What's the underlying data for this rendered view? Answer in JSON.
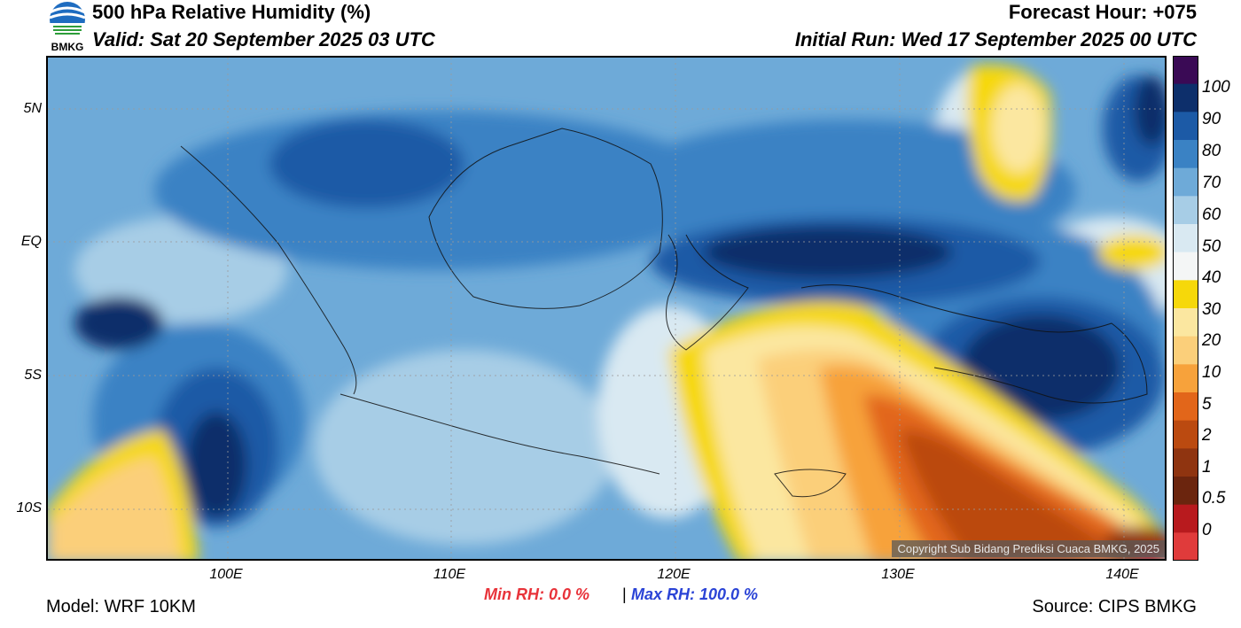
{
  "header": {
    "logo_text": "BMKG",
    "title": "500 hPa Relative Humidity (%)",
    "valid": "Valid: Sat 20 September 2025 03 UTC",
    "forecast_hour": "Forecast Hour: +075",
    "initial_run": "Initial Run: Wed 17 September 2025 00 UTC"
  },
  "map": {
    "lat_labels": [
      "5N",
      "EQ",
      "5S",
      "10S"
    ],
    "lon_labels": [
      "100E",
      "110E",
      "120E",
      "130E",
      "140E"
    ],
    "copyright": "Copyright Sub Bidang Prediksi Cuaca BMKG, 2025"
  },
  "colorbar": {
    "labels": [
      "100",
      "90",
      "80",
      "70",
      "60",
      "50",
      "40",
      "30",
      "20",
      "10",
      "5",
      "2",
      "1",
      "0.5",
      "0"
    ],
    "colors": [
      "#3a0a55",
      "#0d2f6b",
      "#1c5aa6",
      "#3a82c4",
      "#6eaad8",
      "#a7cde6",
      "#d9e9f2",
      "#f4f6f6",
      "#f6d80a",
      "#fbe7a0",
      "#fbcf7a",
      "#f7a23b",
      "#e2661a",
      "#bb4a10",
      "#8f3410",
      "#6b250e",
      "#b81a1e",
      "#e03b3b"
    ]
  },
  "footer": {
    "min_rh": "Min RH:   0.0 %",
    "separator": "|",
    "max_rh": "Max RH: 100.0 %",
    "model": "Model: WRF 10KM",
    "source": "Source: CIPS BMKG"
  }
}
